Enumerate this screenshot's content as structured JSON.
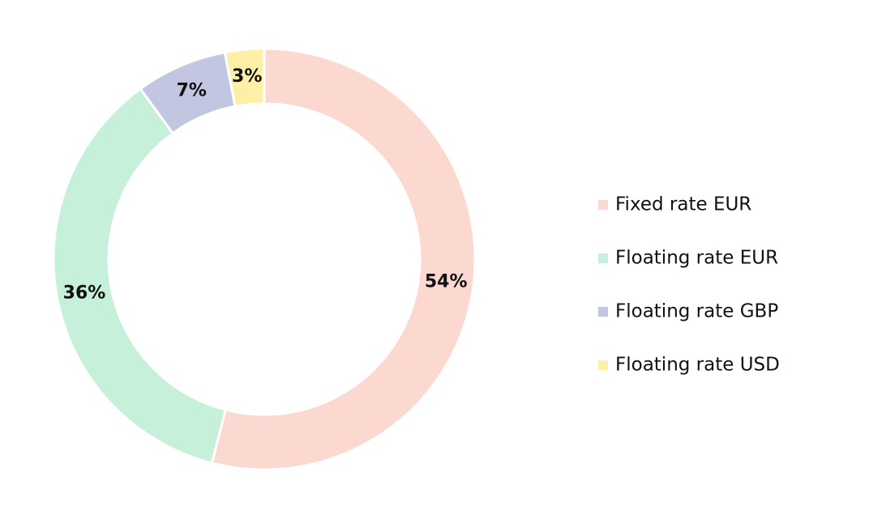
{
  "chart_data": {
    "type": "donut",
    "categories": [
      "Fixed rate EUR",
      "Floating rate EUR",
      "Floating rate GBP",
      "Floating rate USD"
    ],
    "values": [
      54,
      36,
      7,
      3
    ],
    "value_labels": [
      "54%",
      "36%",
      "7%",
      "3%"
    ],
    "colors": [
      "#fcd9d0",
      "#c6f0d9",
      "#c2c6e0",
      "#fdf0a6"
    ],
    "legend": "right"
  }
}
